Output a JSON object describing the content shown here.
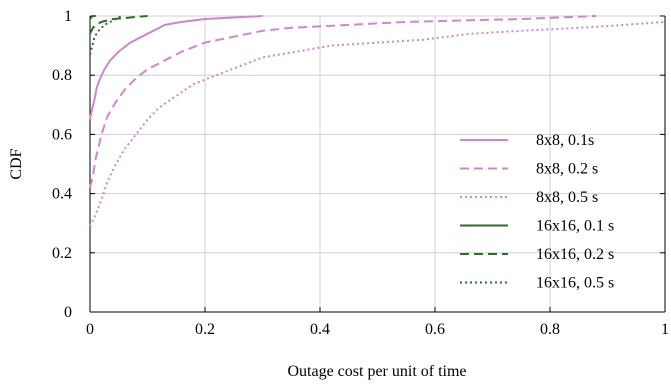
{
  "chart_data": {
    "type": "line",
    "title": "",
    "xlabel": "Outage cost per unit of time",
    "ylabel": "CDF",
    "xlim": [
      0,
      1
    ],
    "ylim": [
      0,
      1
    ],
    "xticks": [
      0,
      0.2,
      0.4,
      0.6,
      0.8,
      1
    ],
    "xtick_labels": [
      "0",
      "0.2",
      "0.4",
      "0.6",
      "0.8",
      "1"
    ],
    "yticks": [
      0,
      0.2,
      0.4,
      0.6,
      0.8,
      1
    ],
    "ytick_labels": [
      "0",
      "0.2",
      "0.4",
      "0.6",
      "0.8",
      "1"
    ],
    "grid": true,
    "legend_position": "right",
    "series": [
      {
        "name": "8x8, 0.1s",
        "color": "#cc88cc",
        "dash": "solid",
        "x": [
          0,
          0.003,
          0.008,
          0.012,
          0.018,
          0.025,
          0.035,
          0.05,
          0.07,
          0.09,
          0.11,
          0.13,
          0.16,
          0.2,
          0.25,
          0.3
        ],
        "y": [
          0.65,
          0.68,
          0.72,
          0.76,
          0.79,
          0.82,
          0.85,
          0.88,
          0.91,
          0.93,
          0.95,
          0.97,
          0.98,
          0.99,
          0.995,
          1.0
        ]
      },
      {
        "name": "8x8, 0.2 s",
        "color": "#cc88cc",
        "dash": "dashed",
        "x": [
          0,
          0.005,
          0.01,
          0.02,
          0.03,
          0.045,
          0.06,
          0.08,
          0.1,
          0.13,
          0.16,
          0.2,
          0.25,
          0.3,
          0.35,
          0.45,
          0.55,
          0.65,
          0.75,
          0.88
        ],
        "y": [
          0.42,
          0.46,
          0.52,
          0.6,
          0.66,
          0.71,
          0.75,
          0.79,
          0.82,
          0.85,
          0.88,
          0.91,
          0.93,
          0.95,
          0.96,
          0.97,
          0.98,
          0.985,
          0.99,
          1.0
        ]
      },
      {
        "name": "8x8, 0.5 s",
        "color": "#cc88cc",
        "dash": "dotted",
        "x": [
          0,
          0.01,
          0.02,
          0.03,
          0.045,
          0.06,
          0.08,
          0.1,
          0.12,
          0.15,
          0.18,
          0.22,
          0.26,
          0.3,
          0.36,
          0.42,
          0.5,
          0.58,
          0.66,
          0.75,
          0.85,
          0.93,
          1.0
        ],
        "y": [
          0.29,
          0.33,
          0.38,
          0.44,
          0.5,
          0.55,
          0.6,
          0.65,
          0.69,
          0.73,
          0.77,
          0.8,
          0.83,
          0.86,
          0.88,
          0.9,
          0.91,
          0.92,
          0.94,
          0.95,
          0.96,
          0.97,
          0.98
        ]
      },
      {
        "name": "16x16, 0.1 s",
        "color": "#2e6b2e",
        "dash": "solid",
        "x": [
          0,
          0.002,
          0.005,
          0.01
        ],
        "y": [
          0.99,
          0.995,
          1.0,
          1.0
        ]
      },
      {
        "name": "16x16, 0.2 s",
        "color": "#2e6b2e",
        "dash": "dashed",
        "x": [
          0,
          0.005,
          0.01,
          0.02,
          0.04,
          0.06,
          0.08,
          0.1
        ],
        "y": [
          0.94,
          0.96,
          0.97,
          0.98,
          0.99,
          0.993,
          0.997,
          1.0
        ]
      },
      {
        "name": "16x16, 0.5 s",
        "color": "#2e6b2e",
        "dash": "dotted",
        "x": [
          0,
          0.004,
          0.008,
          0.015,
          0.025,
          0.035,
          0.045,
          0.055
        ],
        "y": [
          0.87,
          0.9,
          0.93,
          0.95,
          0.97,
          0.98,
          0.99,
          1.0
        ]
      }
    ]
  }
}
